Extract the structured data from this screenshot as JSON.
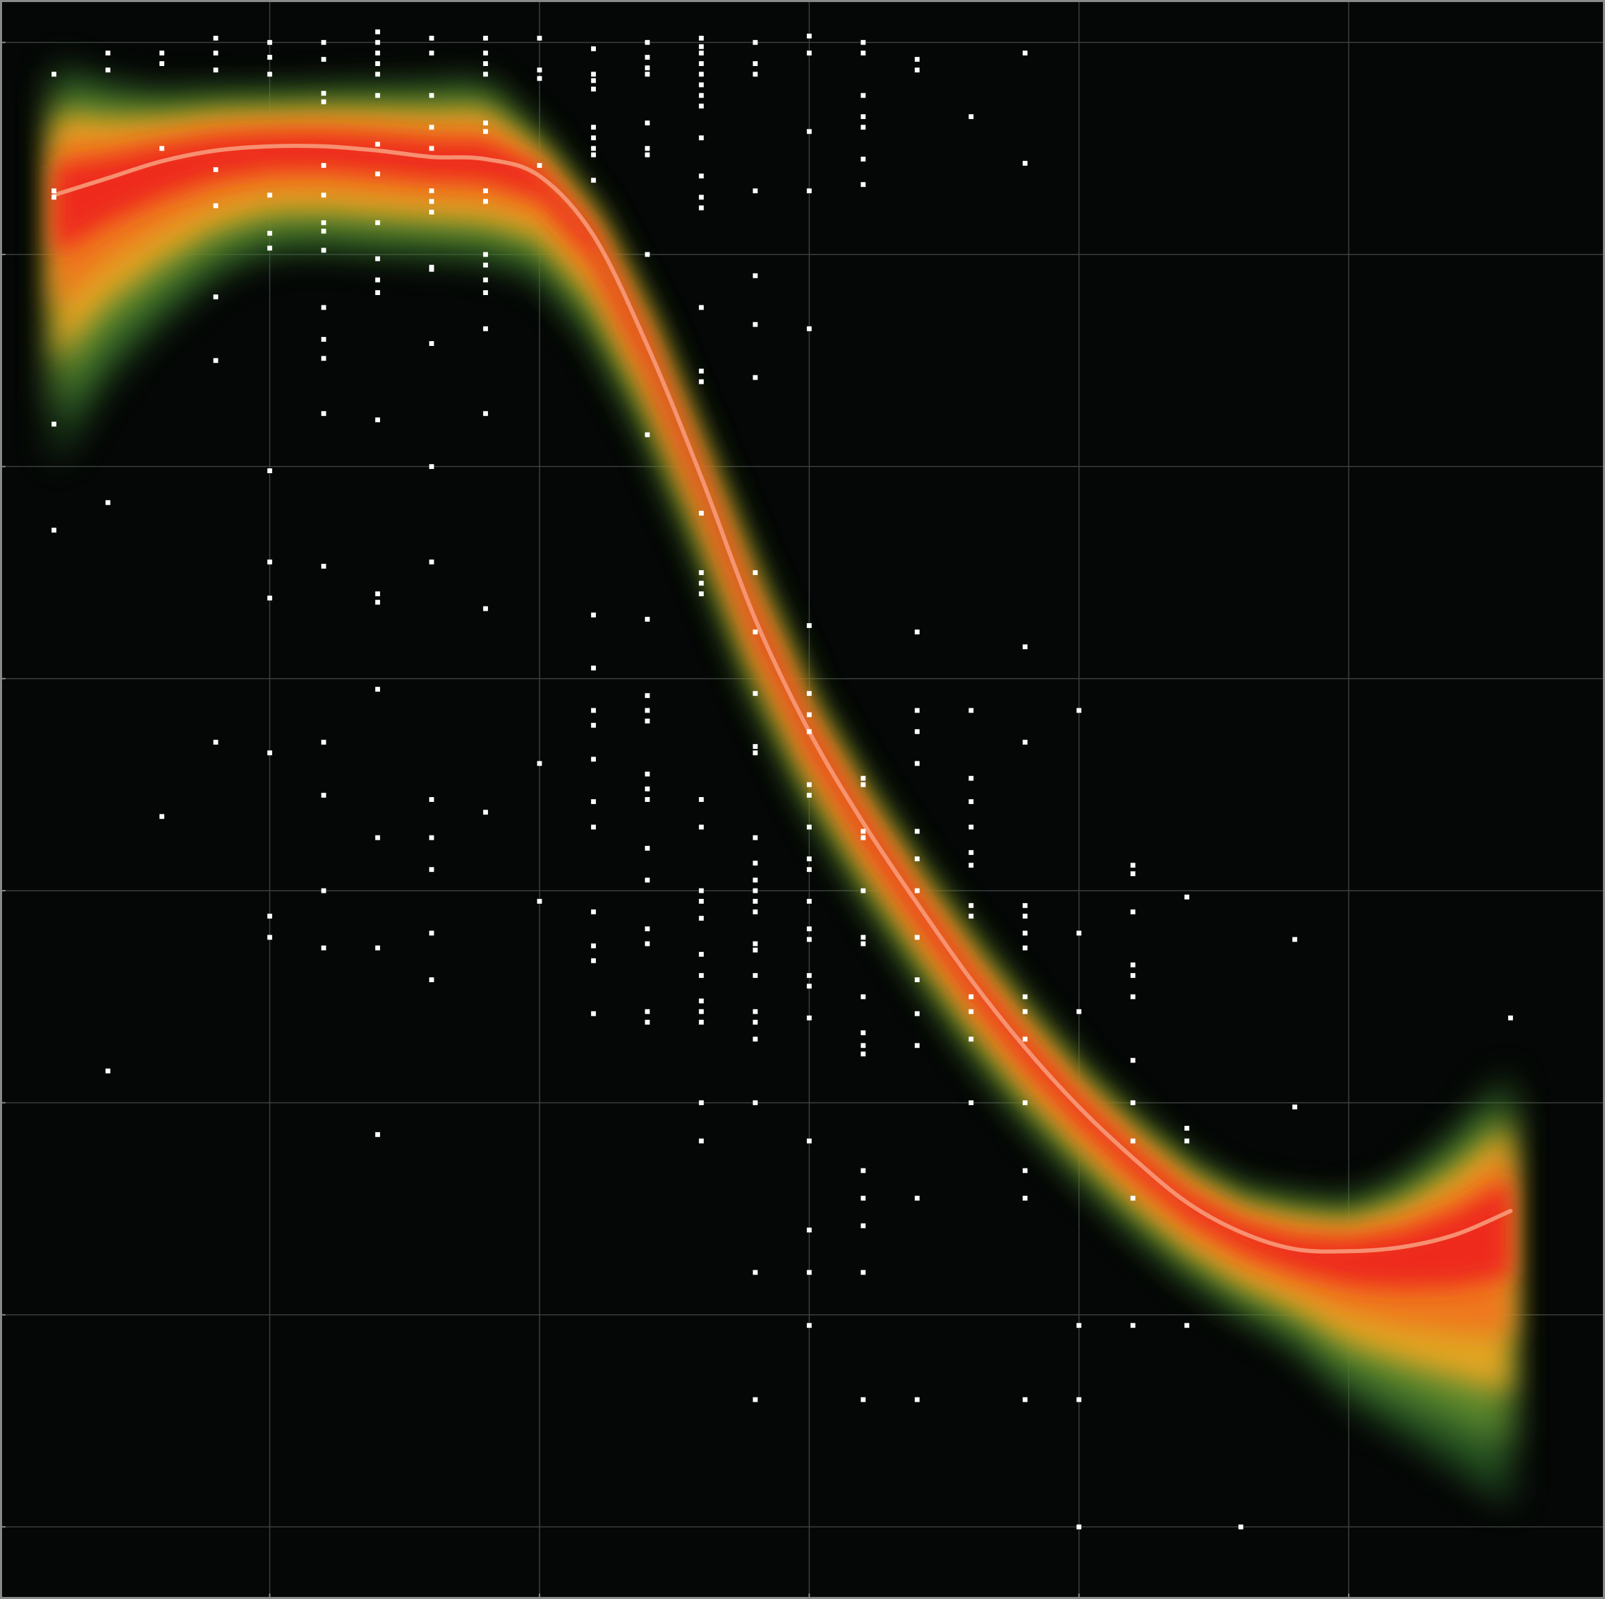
{
  "colors": {
    "background": "#050606",
    "frame": "#8a8a8a",
    "grid": "#3c3f40",
    "points": "#ffffff",
    "trend_line": "#f79a7a",
    "density_core": "#ee2c1c",
    "density_mid": "#f0a822",
    "density_outer": "#2f6a2a"
  },
  "chart_data": {
    "type": "scatter",
    "title": "",
    "xlabel": "",
    "ylabel": "",
    "grid": true,
    "xlim": [
      0.0,
      2.975
    ],
    "ylim": [
      -0.34,
      7.2
    ],
    "x_gridlines": [
      0.5,
      1.0,
      1.5,
      2.0,
      2.5
    ],
    "y_gridlines": [
      0,
      1,
      2,
      3,
      4,
      5,
      6,
      7
    ],
    "trend": {
      "x": [
        0.1,
        0.2,
        0.3,
        0.4,
        0.5,
        0.6,
        0.7,
        0.8,
        0.9,
        1.0,
        1.1,
        1.2,
        1.3,
        1.4,
        1.5,
        1.6,
        1.7,
        1.8,
        1.9,
        2.0,
        2.1,
        2.2,
        2.3,
        2.4,
        2.5,
        2.6,
        2.7,
        2.8
      ],
      "y": [
        6.28,
        6.36,
        6.44,
        6.49,
        6.51,
        6.51,
        6.49,
        6.46,
        6.45,
        6.37,
        6.09,
        5.57,
        4.95,
        4.28,
        3.75,
        3.32,
        2.94,
        2.58,
        2.26,
        1.98,
        1.74,
        1.53,
        1.39,
        1.31,
        1.3,
        1.32,
        1.38,
        1.49
      ]
    },
    "band": {
      "x": [
        0.1,
        0.2,
        0.3,
        0.4,
        0.5,
        0.6,
        0.7,
        0.8,
        0.9,
        1.0,
        1.1,
        1.2,
        1.3,
        1.4,
        1.5,
        1.6,
        1.7,
        1.8,
        1.9,
        2.0,
        2.1,
        2.2,
        2.3,
        2.4,
        2.5,
        2.6,
        2.7,
        2.8
      ],
      "upper": [
        6.9,
        6.8,
        6.76,
        6.77,
        6.77,
        6.78,
        6.79,
        6.8,
        6.82,
        6.55,
        6.2,
        5.72,
        5.1,
        4.5,
        3.92,
        3.5,
        3.12,
        2.78,
        2.46,
        2.17,
        1.93,
        1.73,
        1.59,
        1.55,
        1.52,
        1.64,
        1.86,
        2.15
      ],
      "lower": [
        5.0,
        5.42,
        5.68,
        5.9,
        6.01,
        6.02,
        6.0,
        5.99,
        5.97,
        5.9,
        5.6,
        5.14,
        4.56,
        3.92,
        3.4,
        2.98,
        2.6,
        2.24,
        1.92,
        1.65,
        1.4,
        1.18,
        1.0,
        0.85,
        0.6,
        0.44,
        0.28,
        0.1
      ]
    },
    "points": [
      [
        0.1,
        6.85
      ],
      [
        0.1,
        6.3
      ],
      [
        0.1,
        6.27
      ],
      [
        0.1,
        5.2
      ],
      [
        0.1,
        4.7
      ],
      [
        0.2,
        6.95
      ],
      [
        0.2,
        6.87
      ],
      [
        0.2,
        4.83
      ],
      [
        0.2,
        2.15
      ],
      [
        0.3,
        6.95
      ],
      [
        0.3,
        6.9
      ],
      [
        0.3,
        6.5
      ],
      [
        0.3,
        3.35
      ],
      [
        0.4,
        7.02
      ],
      [
        0.4,
        6.95
      ],
      [
        0.4,
        6.87
      ],
      [
        0.4,
        6.23
      ],
      [
        0.4,
        6.4
      ],
      [
        0.4,
        5.8
      ],
      [
        0.4,
        5.5
      ],
      [
        0.4,
        3.7
      ],
      [
        0.5,
        7.0
      ],
      [
        0.5,
        6.93
      ],
      [
        0.5,
        6.85
      ],
      [
        0.5,
        6.1
      ],
      [
        0.5,
        6.03
      ],
      [
        0.5,
        6.28
      ],
      [
        0.5,
        4.98
      ],
      [
        0.5,
        4.55
      ],
      [
        0.5,
        4.38
      ],
      [
        0.5,
        3.65
      ],
      [
        0.5,
        2.88
      ],
      [
        0.5,
        2.78
      ],
      [
        0.6,
        7.0
      ],
      [
        0.6,
        6.92
      ],
      [
        0.6,
        6.76
      ],
      [
        0.6,
        6.72
      ],
      [
        0.6,
        6.42
      ],
      [
        0.6,
        6.28
      ],
      [
        0.6,
        6.15
      ],
      [
        0.6,
        6.11
      ],
      [
        0.6,
        6.02
      ],
      [
        0.6,
        5.75
      ],
      [
        0.6,
        5.6
      ],
      [
        0.6,
        5.51
      ],
      [
        0.6,
        5.25
      ],
      [
        0.6,
        4.53
      ],
      [
        0.6,
        3.7
      ],
      [
        0.6,
        3.45
      ],
      [
        0.6,
        3.0
      ],
      [
        0.6,
        2.73
      ],
      [
        0.7,
        7.05
      ],
      [
        0.7,
        7.0
      ],
      [
        0.7,
        6.95
      ],
      [
        0.7,
        6.9
      ],
      [
        0.7,
        6.85
      ],
      [
        0.7,
        6.75
      ],
      [
        0.7,
        6.52
      ],
      [
        0.7,
        6.38
      ],
      [
        0.7,
        6.15
      ],
      [
        0.7,
        5.98
      ],
      [
        0.7,
        5.88
      ],
      [
        0.7,
        5.82
      ],
      [
        0.7,
        5.22
      ],
      [
        0.7,
        4.4
      ],
      [
        0.7,
        4.36
      ],
      [
        0.7,
        3.95
      ],
      [
        0.7,
        3.25
      ],
      [
        0.7,
        2.73
      ],
      [
        0.7,
        1.85
      ],
      [
        0.8,
        7.02
      ],
      [
        0.8,
        6.95
      ],
      [
        0.8,
        6.75
      ],
      [
        0.8,
        6.6
      ],
      [
        0.8,
        6.5
      ],
      [
        0.8,
        6.3
      ],
      [
        0.8,
        6.25
      ],
      [
        0.8,
        6.2
      ],
      [
        0.8,
        5.94
      ],
      [
        0.8,
        5.93
      ],
      [
        0.8,
        5.58
      ],
      [
        0.8,
        5.0
      ],
      [
        0.8,
        4.55
      ],
      [
        0.8,
        3.43
      ],
      [
        0.8,
        3.25
      ],
      [
        0.8,
        3.1
      ],
      [
        0.8,
        2.8
      ],
      [
        0.8,
        2.58
      ],
      [
        0.9,
        7.02
      ],
      [
        0.9,
        6.95
      ],
      [
        0.9,
        6.9
      ],
      [
        0.9,
        6.85
      ],
      [
        0.9,
        6.62
      ],
      [
        0.9,
        6.58
      ],
      [
        0.9,
        6.3
      ],
      [
        0.9,
        6.25
      ],
      [
        0.9,
        6.0
      ],
      [
        0.9,
        5.95
      ],
      [
        0.9,
        5.88
      ],
      [
        0.9,
        5.82
      ],
      [
        0.9,
        5.65
      ],
      [
        0.9,
        5.25
      ],
      [
        0.9,
        4.33
      ],
      [
        0.9,
        3.37
      ],
      [
        1.0,
        7.02
      ],
      [
        1.0,
        6.87
      ],
      [
        1.0,
        6.83
      ],
      [
        1.0,
        6.42
      ],
      [
        1.0,
        3.6
      ],
      [
        1.0,
        2.95
      ],
      [
        1.1,
        6.97
      ],
      [
        1.1,
        6.85
      ],
      [
        1.1,
        6.82
      ],
      [
        1.1,
        6.78
      ],
      [
        1.1,
        6.6
      ],
      [
        1.1,
        6.55
      ],
      [
        1.1,
        6.5
      ],
      [
        1.1,
        6.47
      ],
      [
        1.1,
        6.35
      ],
      [
        1.1,
        4.3
      ],
      [
        1.1,
        4.05
      ],
      [
        1.1,
        3.85
      ],
      [
        1.1,
        3.78
      ],
      [
        1.1,
        3.62
      ],
      [
        1.1,
        3.42
      ],
      [
        1.1,
        3.3
      ],
      [
        1.1,
        2.9
      ],
      [
        1.1,
        2.74
      ],
      [
        1.1,
        2.67
      ],
      [
        1.1,
        2.42
      ],
      [
        1.2,
        7.0
      ],
      [
        1.2,
        6.93
      ],
      [
        1.2,
        6.88
      ],
      [
        1.2,
        6.85
      ],
      [
        1.2,
        6.62
      ],
      [
        1.2,
        6.5
      ],
      [
        1.2,
        6.47
      ],
      [
        1.2,
        6.0
      ],
      [
        1.2,
        5.15
      ],
      [
        1.2,
        4.28
      ],
      [
        1.2,
        3.92
      ],
      [
        1.2,
        3.85
      ],
      [
        1.2,
        3.8
      ],
      [
        1.2,
        3.55
      ],
      [
        1.2,
        3.48
      ],
      [
        1.2,
        3.43
      ],
      [
        1.2,
        3.2
      ],
      [
        1.2,
        3.05
      ],
      [
        1.2,
        2.82
      ],
      [
        1.2,
        2.75
      ],
      [
        1.2,
        2.43
      ],
      [
        1.2,
        2.38
      ],
      [
        1.3,
        7.02
      ],
      [
        1.3,
        6.98
      ],
      [
        1.3,
        6.95
      ],
      [
        1.3,
        6.9
      ],
      [
        1.3,
        6.85
      ],
      [
        1.3,
        6.8
      ],
      [
        1.3,
        6.75
      ],
      [
        1.3,
        6.7
      ],
      [
        1.3,
        6.55
      ],
      [
        1.3,
        6.37
      ],
      [
        1.3,
        6.27
      ],
      [
        1.3,
        6.22
      ],
      [
        1.3,
        5.75
      ],
      [
        1.3,
        5.45
      ],
      [
        1.3,
        5.4
      ],
      [
        1.3,
        4.78
      ],
      [
        1.3,
        4.5
      ],
      [
        1.3,
        4.45
      ],
      [
        1.3,
        4.4
      ],
      [
        1.3,
        3.43
      ],
      [
        1.3,
        3.3
      ],
      [
        1.3,
        3.0
      ],
      [
        1.3,
        2.95
      ],
      [
        1.3,
        2.87
      ],
      [
        1.3,
        2.7
      ],
      [
        1.3,
        2.6
      ],
      [
        1.3,
        2.48
      ],
      [
        1.3,
        2.43
      ],
      [
        1.3,
        2.38
      ],
      [
        1.3,
        2.0
      ],
      [
        1.3,
        1.82
      ],
      [
        1.4,
        7.0
      ],
      [
        1.4,
        6.9
      ],
      [
        1.4,
        6.85
      ],
      [
        1.4,
        6.3
      ],
      [
        1.4,
        5.9
      ],
      [
        1.4,
        5.67
      ],
      [
        1.4,
        5.42
      ],
      [
        1.4,
        4.5
      ],
      [
        1.4,
        4.22
      ],
      [
        1.4,
        3.93
      ],
      [
        1.4,
        3.68
      ],
      [
        1.4,
        3.65
      ],
      [
        1.4,
        3.25
      ],
      [
        1.4,
        3.13
      ],
      [
        1.4,
        3.05
      ],
      [
        1.4,
        3.0
      ],
      [
        1.4,
        2.95
      ],
      [
        1.4,
        2.9
      ],
      [
        1.4,
        2.75
      ],
      [
        1.4,
        2.72
      ],
      [
        1.4,
        2.6
      ],
      [
        1.4,
        2.43
      ],
      [
        1.4,
        2.38
      ],
      [
        1.4,
        2.3
      ],
      [
        1.4,
        2.0
      ],
      [
        1.4,
        1.2
      ],
      [
        1.4,
        0.6
      ],
      [
        1.5,
        7.03
      ],
      [
        1.5,
        6.95
      ],
      [
        1.5,
        6.58
      ],
      [
        1.5,
        6.3
      ],
      [
        1.5,
        5.65
      ],
      [
        1.5,
        4.25
      ],
      [
        1.5,
        3.93
      ],
      [
        1.5,
        3.83
      ],
      [
        1.5,
        3.75
      ],
      [
        1.5,
        3.5
      ],
      [
        1.5,
        3.45
      ],
      [
        1.5,
        3.3
      ],
      [
        1.5,
        3.15
      ],
      [
        1.5,
        3.1
      ],
      [
        1.5,
        2.95
      ],
      [
        1.5,
        2.82
      ],
      [
        1.5,
        2.77
      ],
      [
        1.5,
        2.6
      ],
      [
        1.5,
        2.55
      ],
      [
        1.5,
        2.4
      ],
      [
        1.5,
        1.82
      ],
      [
        1.5,
        1.4
      ],
      [
        1.5,
        1.2
      ],
      [
        1.5,
        0.95
      ],
      [
        1.6,
        7.0
      ],
      [
        1.6,
        6.95
      ],
      [
        1.6,
        6.75
      ],
      [
        1.6,
        6.65
      ],
      [
        1.6,
        6.6
      ],
      [
        1.6,
        6.45
      ],
      [
        1.6,
        6.33
      ],
      [
        1.6,
        3.53
      ],
      [
        1.6,
        3.5
      ],
      [
        1.6,
        3.28
      ],
      [
        1.6,
        3.25
      ],
      [
        1.6,
        3.0
      ],
      [
        1.6,
        2.78
      ],
      [
        1.6,
        2.75
      ],
      [
        1.6,
        2.5
      ],
      [
        1.6,
        2.33
      ],
      [
        1.6,
        2.27
      ],
      [
        1.6,
        2.23
      ],
      [
        1.6,
        1.68
      ],
      [
        1.6,
        1.55
      ],
      [
        1.6,
        1.42
      ],
      [
        1.6,
        1.2
      ],
      [
        1.6,
        0.6
      ],
      [
        1.7,
        6.92
      ],
      [
        1.7,
        6.87
      ],
      [
        1.7,
        4.22
      ],
      [
        1.7,
        3.85
      ],
      [
        1.7,
        3.75
      ],
      [
        1.7,
        3.6
      ],
      [
        1.7,
        3.28
      ],
      [
        1.7,
        3.15
      ],
      [
        1.7,
        3.0
      ],
      [
        1.7,
        2.78
      ],
      [
        1.7,
        2.58
      ],
      [
        1.7,
        2.42
      ],
      [
        1.7,
        2.27
      ],
      [
        1.7,
        1.55
      ],
      [
        1.7,
        0.6
      ],
      [
        1.8,
        6.65
      ],
      [
        1.8,
        3.85
      ],
      [
        1.8,
        3.53
      ],
      [
        1.8,
        3.42
      ],
      [
        1.8,
        3.3
      ],
      [
        1.8,
        3.18
      ],
      [
        1.8,
        3.12
      ],
      [
        1.8,
        2.93
      ],
      [
        1.8,
        2.88
      ],
      [
        1.8,
        2.5
      ],
      [
        1.8,
        2.43
      ],
      [
        1.8,
        2.3
      ],
      [
        1.8,
        2.0
      ],
      [
        1.9,
        6.95
      ],
      [
        1.9,
        6.43
      ],
      [
        1.9,
        4.15
      ],
      [
        1.9,
        3.7
      ],
      [
        1.9,
        2.93
      ],
      [
        1.9,
        2.88
      ],
      [
        1.9,
        2.8
      ],
      [
        1.9,
        2.73
      ],
      [
        1.9,
        2.5
      ],
      [
        1.9,
        2.43
      ],
      [
        1.9,
        2.3
      ],
      [
        1.9,
        2.0
      ],
      [
        1.9,
        1.68
      ],
      [
        1.9,
        1.55
      ],
      [
        1.9,
        0.6
      ],
      [
        2.0,
        3.85
      ],
      [
        2.0,
        2.8
      ],
      [
        2.0,
        2.43
      ],
      [
        2.0,
        0.95
      ],
      [
        2.0,
        0.6
      ],
      [
        2.0,
        0.0
      ],
      [
        2.1,
        3.12
      ],
      [
        2.1,
        3.08
      ],
      [
        2.1,
        2.9
      ],
      [
        2.1,
        2.65
      ],
      [
        2.1,
        2.6
      ],
      [
        2.1,
        2.5
      ],
      [
        2.1,
        2.2
      ],
      [
        2.1,
        2.0
      ],
      [
        2.1,
        1.82
      ],
      [
        2.1,
        1.55
      ],
      [
        2.1,
        0.95
      ],
      [
        2.2,
        2.97
      ],
      [
        2.2,
        1.88
      ],
      [
        2.2,
        1.82
      ],
      [
        2.2,
        0.95
      ],
      [
        2.3,
        0.0
      ],
      [
        2.4,
        2.77
      ],
      [
        2.4,
        1.98
      ],
      [
        2.8,
        2.4
      ]
    ]
  }
}
